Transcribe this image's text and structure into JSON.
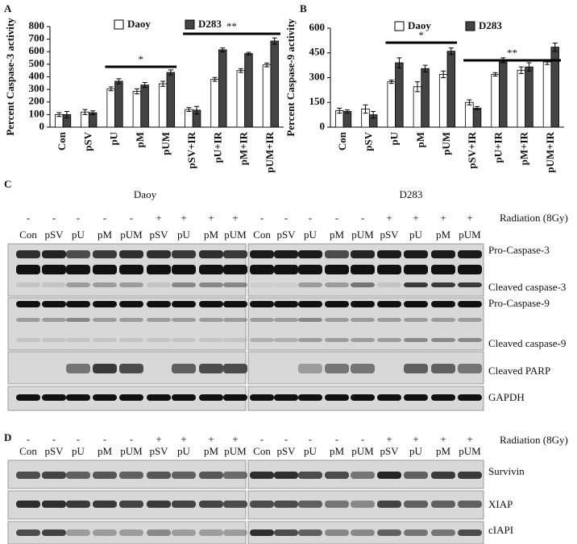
{
  "chart_data": [
    {
      "type": "bar",
      "panel": "A",
      "ylabel": "Percent Caspase-3 activity",
      "categories": [
        "Con",
        "pSV",
        "pU",
        "pM",
        "pUM",
        "pSV+IR",
        "pU+IR",
        "pM+IR",
        "pUM+IR"
      ],
      "series": [
        {
          "name": "Daoy",
          "color": "#ffffff",
          "values": [
            100,
            120,
            305,
            285,
            345,
            140,
            380,
            450,
            495
          ],
          "errors": [
            15,
            20,
            15,
            20,
            20,
            15,
            15,
            15,
            15
          ]
        },
        {
          "name": "D283",
          "color": "#444444",
          "values": [
            100,
            115,
            365,
            335,
            435,
            135,
            615,
            585,
            685
          ],
          "errors": [
            25,
            15,
            20,
            20,
            20,
            30,
            15,
            10,
            25
          ]
        }
      ],
      "ylim": [
        0,
        800
      ],
      "yticks": [
        0,
        100,
        200,
        300,
        400,
        500,
        600,
        700,
        800
      ],
      "annotations": [
        "*",
        "**"
      ]
    },
    {
      "type": "bar",
      "panel": "B",
      "ylabel": "Percent Caspase-9 activity",
      "categories": [
        "Con",
        "pSV",
        "pU",
        "pM",
        "pUM",
        "pSV+IR",
        "pU+IR",
        "pM+IR",
        "pUM+IR"
      ],
      "series": [
        {
          "name": "Daoy",
          "color": "#ffffff",
          "values": [
            100,
            110,
            275,
            245,
            320,
            150,
            320,
            345,
            395
          ],
          "errors": [
            15,
            25,
            10,
            30,
            20,
            15,
            10,
            20,
            15
          ]
        },
        {
          "name": "D283",
          "color": "#444444",
          "values": [
            95,
            75,
            390,
            355,
            460,
            115,
            405,
            365,
            485
          ],
          "errors": [
            10,
            20,
            30,
            20,
            20,
            10,
            15,
            25,
            25
          ]
        }
      ],
      "ylim": [
        0,
        600
      ],
      "yticks": [
        0,
        150,
        300,
        450,
        600
      ],
      "annotations": [
        "*",
        "**"
      ]
    }
  ],
  "panel_c": {
    "label": "C",
    "left_title": "Daoy",
    "right_title": "D283",
    "radiation": "Radiation (8Gy)",
    "signs": [
      "-",
      "-",
      "-",
      "-",
      "-",
      "+",
      "+",
      "+",
      "+"
    ],
    "lanes": [
      "Con",
      "pSV",
      "pU",
      "pM",
      "pUM",
      "pSV",
      "pU",
      "pM",
      "pUM"
    ],
    "rows": [
      "Pro-Caspase-3",
      "Cleaved caspase-3",
      "Pro-Caspase-9",
      "Cleaved caspase-9",
      "Cleaved PARP",
      "GAPDH"
    ]
  },
  "panel_d": {
    "label": "D",
    "radiation": "Radiation (8Gy)",
    "signs": [
      "-",
      "-",
      "-",
      "-",
      "-",
      "+",
      "+",
      "+",
      "+"
    ],
    "lanes": [
      "Con",
      "pSV",
      "pU",
      "pM",
      "pUM",
      "pSV",
      "pU",
      "pM",
      "pUM"
    ],
    "rows": [
      "Survivin",
      "XIAP",
      "cIAPI"
    ]
  }
}
